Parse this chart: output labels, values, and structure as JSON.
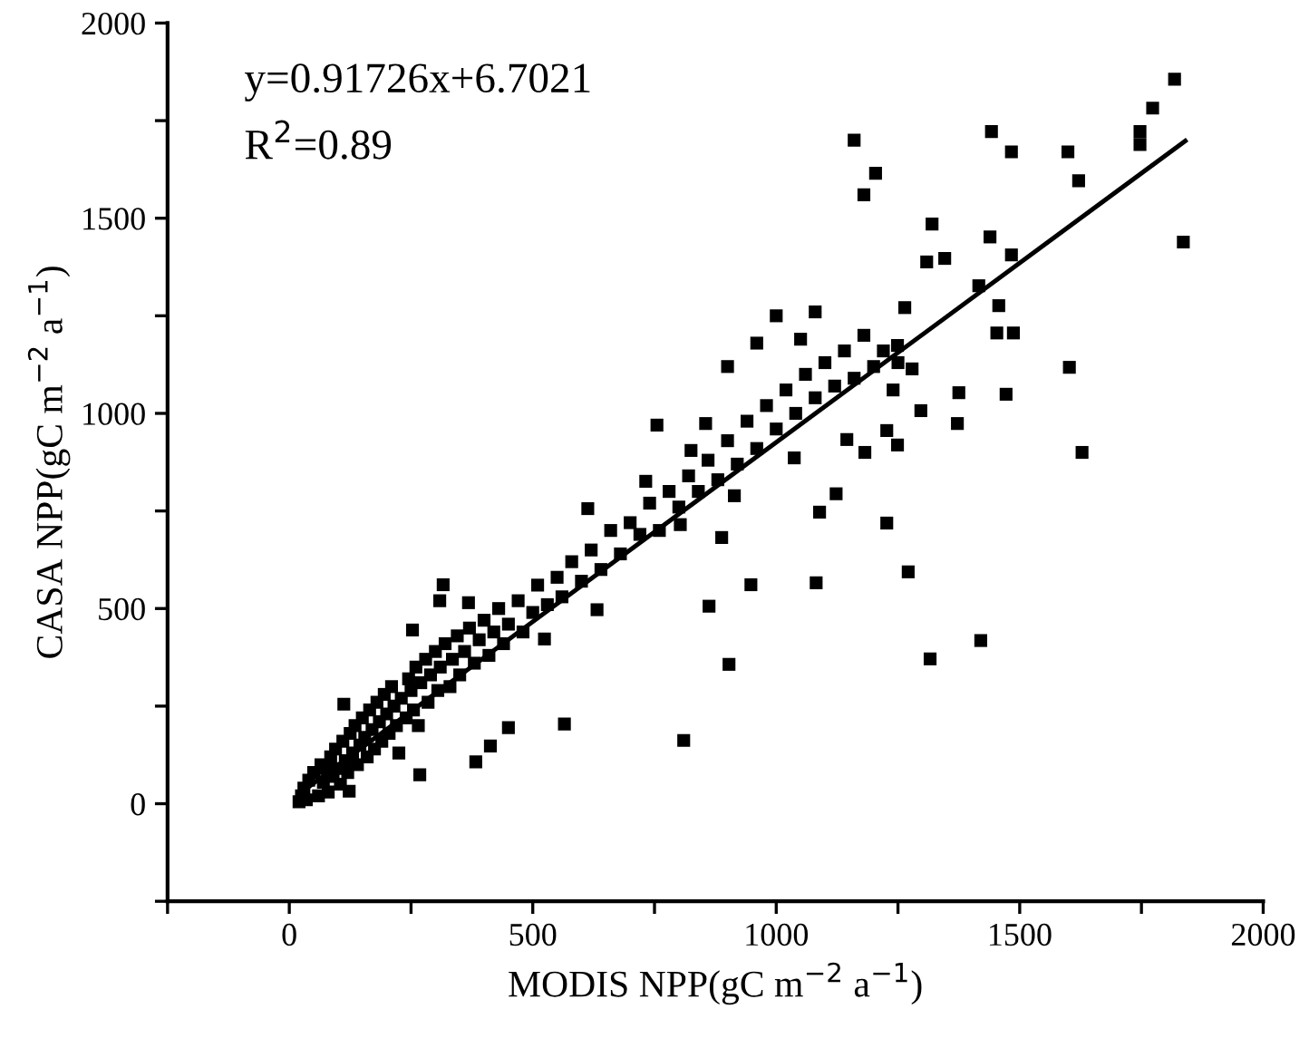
{
  "chart_data": {
    "type": "scatter",
    "xlabel": "MODIS NPP(gC m$^{−2}$ a$^{−1}$)",
    "ylabel": "CASA NPP(gC m$^{−2}$ a$^{−1}$)",
    "annotations": [
      "y=0.91726x+6.7021",
      "R$^{2}$=0.89"
    ],
    "xlim": [
      -250,
      2000
    ],
    "ylim": [
      -250,
      2000
    ],
    "xticks": [
      {
        "value": -250,
        "label": null
      },
      0,
      {
        "value": 250,
        "label": null
      },
      500,
      {
        "value": 750,
        "label": null
      },
      1000,
      {
        "value": 1250,
        "label": null
      },
      1500,
      {
        "value": 1750,
        "label": null
      },
      2000
    ],
    "yticks": [
      {
        "value": -250,
        "label": null
      },
      0,
      {
        "value": 250,
        "label": null
      },
      500,
      {
        "value": 750,
        "label": null
      },
      1000,
      {
        "value": 1250,
        "label": null
      },
      1500,
      {
        "value": 1750,
        "label": null
      },
      2000
    ],
    "grid": false,
    "marker": "square",
    "series": [
      {
        "color": "#000000",
        "x": [
          1818,
          1773,
          1747,
          1747,
          1442,
          1483,
          1599,
          1621,
          1836,
          1204,
          1320,
          1309,
          1346,
          1439,
          1483,
          1416,
          1457,
          1453,
          1487,
          1264,
          1249,
          1602,
          1628,
          1279,
          1375,
          1472,
          1297,
          1372,
          1227,
          1249,
          1227,
          1271,
          1420,
          1316,
          1082,
          903,
          810,
          565,
          948,
          862,
          888,
          1089,
          1123,
          755,
          855,
          825,
          632,
          613,
          732,
          803,
          914,
          1037,
          1145,
          1182,
          316,
          309,
          253,
          112,
          383,
          123,
          450,
          413,
          268,
          524,
          368,
          20,
          25,
          30,
          35,
          40,
          50,
          60,
          65,
          70,
          75,
          80,
          85,
          90,
          95,
          100,
          105,
          110,
          115,
          120,
          125,
          130,
          135,
          140,
          145,
          150,
          155,
          160,
          165,
          170,
          175,
          180,
          185,
          190,
          195,
          200,
          205,
          210,
          215,
          220,
          225,
          230,
          240,
          245,
          250,
          255,
          260,
          265,
          270,
          280,
          285,
          290,
          300,
          305,
          310,
          320,
          330,
          335,
          345,
          350,
          360,
          370,
          380,
          390,
          400,
          410,
          420,
          430,
          440,
          450,
          470,
          480,
          500,
          510,
          530,
          550,
          560,
          580,
          600,
          620,
          640,
          660,
          680,
          700,
          720,
          740,
          760,
          780,
          800,
          820,
          840,
          860,
          880,
          900,
          920,
          940,
          960,
          980,
          1000,
          1020,
          1040,
          1060,
          1080,
          1100,
          1120,
          1140,
          1160,
          1180,
          1200,
          1220,
          1240,
          1250,
          1000,
          1050,
          960,
          900,
          1160,
          1180,
          1080
        ],
        "values": [
          1856,
          1782,
          1722,
          1689,
          1722,
          1670,
          1670,
          1596,
          1439,
          1615,
          1485,
          1388,
          1397,
          1452,
          1406,
          1327,
          1276,
          1206,
          1206,
          1271,
          1174,
          1118,
          900,
          1114,
          1053,
          1049,
          1007,
          974,
          956,
          919,
          719,
          594,
          418,
          371,
          566,
          357,
          162,
          204,
          561,
          506,
          682,
          747,
          794,
          970,
          974,
          905,
          497,
          756,
          826,
          715,
          789,
          886,
          933,
          900,
          561,
          520,
          445,
          255,
          107,
          32,
          195,
          148,
          74,
          422,
          515,
          5,
          20,
          40,
          10,
          60,
          80,
          20,
          100,
          55,
          90,
          30,
          120,
          70,
          140,
          90,
          50,
          160,
          110,
          80,
          180,
          130,
          200,
          100,
          150,
          220,
          170,
          120,
          240,
          190,
          140,
          260,
          210,
          160,
          280,
          230,
          180,
          300,
          250,
          200,
          130,
          270,
          220,
          320,
          290,
          240,
          350,
          200,
          310,
          370,
          260,
          330,
          390,
          290,
          350,
          410,
          300,
          370,
          430,
          330,
          390,
          450,
          360,
          420,
          470,
          380,
          440,
          500,
          410,
          460,
          520,
          440,
          490,
          560,
          510,
          580,
          530,
          620,
          570,
          650,
          600,
          700,
          640,
          720,
          690,
          770,
          700,
          800,
          760,
          840,
          800,
          880,
          830,
          930,
          870,
          980,
          910,
          1020,
          960,
          1060,
          1000,
          1100,
          1040,
          1130,
          1070,
          1160,
          1090,
          1200,
          1120,
          1160,
          1060,
          1130,
          1250,
          1190,
          1180,
          1120,
          1700,
          1560,
          1260
        ]
      },
      {
        "type": "line",
        "color": "#000000",
        "marker": "none",
        "x": [
          20,
          1840
        ],
        "values": [
          25,
          1698
        ]
      }
    ]
  }
}
